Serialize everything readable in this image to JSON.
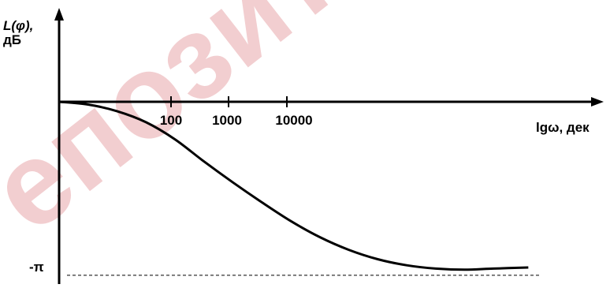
{
  "watermark": "епозитор",
  "chart_data": {
    "type": "line",
    "ylabel_line1": "L(φ),",
    "ylabel_line2": "дБ",
    "xlabel": "lgω, дек",
    "x_ticks": [
      "100",
      "1000",
      "10000"
    ],
    "y_ticks": [
      "-π"
    ],
    "xlim": [
      0,
      8.3
    ],
    "ylim": [
      -3.3,
      1.7
    ],
    "asymptote": {
      "y": -3.14159,
      "style": "dashed"
    },
    "series": [
      {
        "x": [
          0,
          0.5,
          1,
          1.5,
          2,
          2.5,
          3,
          3.5,
          4,
          4.5,
          5,
          5.5,
          6,
          6.5,
          7,
          7.5,
          8.1
        ],
        "y": [
          0,
          -0.05,
          -0.17,
          -0.37,
          -0.68,
          -1.08,
          -1.46,
          -1.82,
          -2.16,
          -2.45,
          -2.68,
          -2.85,
          -2.96,
          -3.02,
          -3.04,
          -3.02,
          -3.0
        ]
      }
    ]
  }
}
